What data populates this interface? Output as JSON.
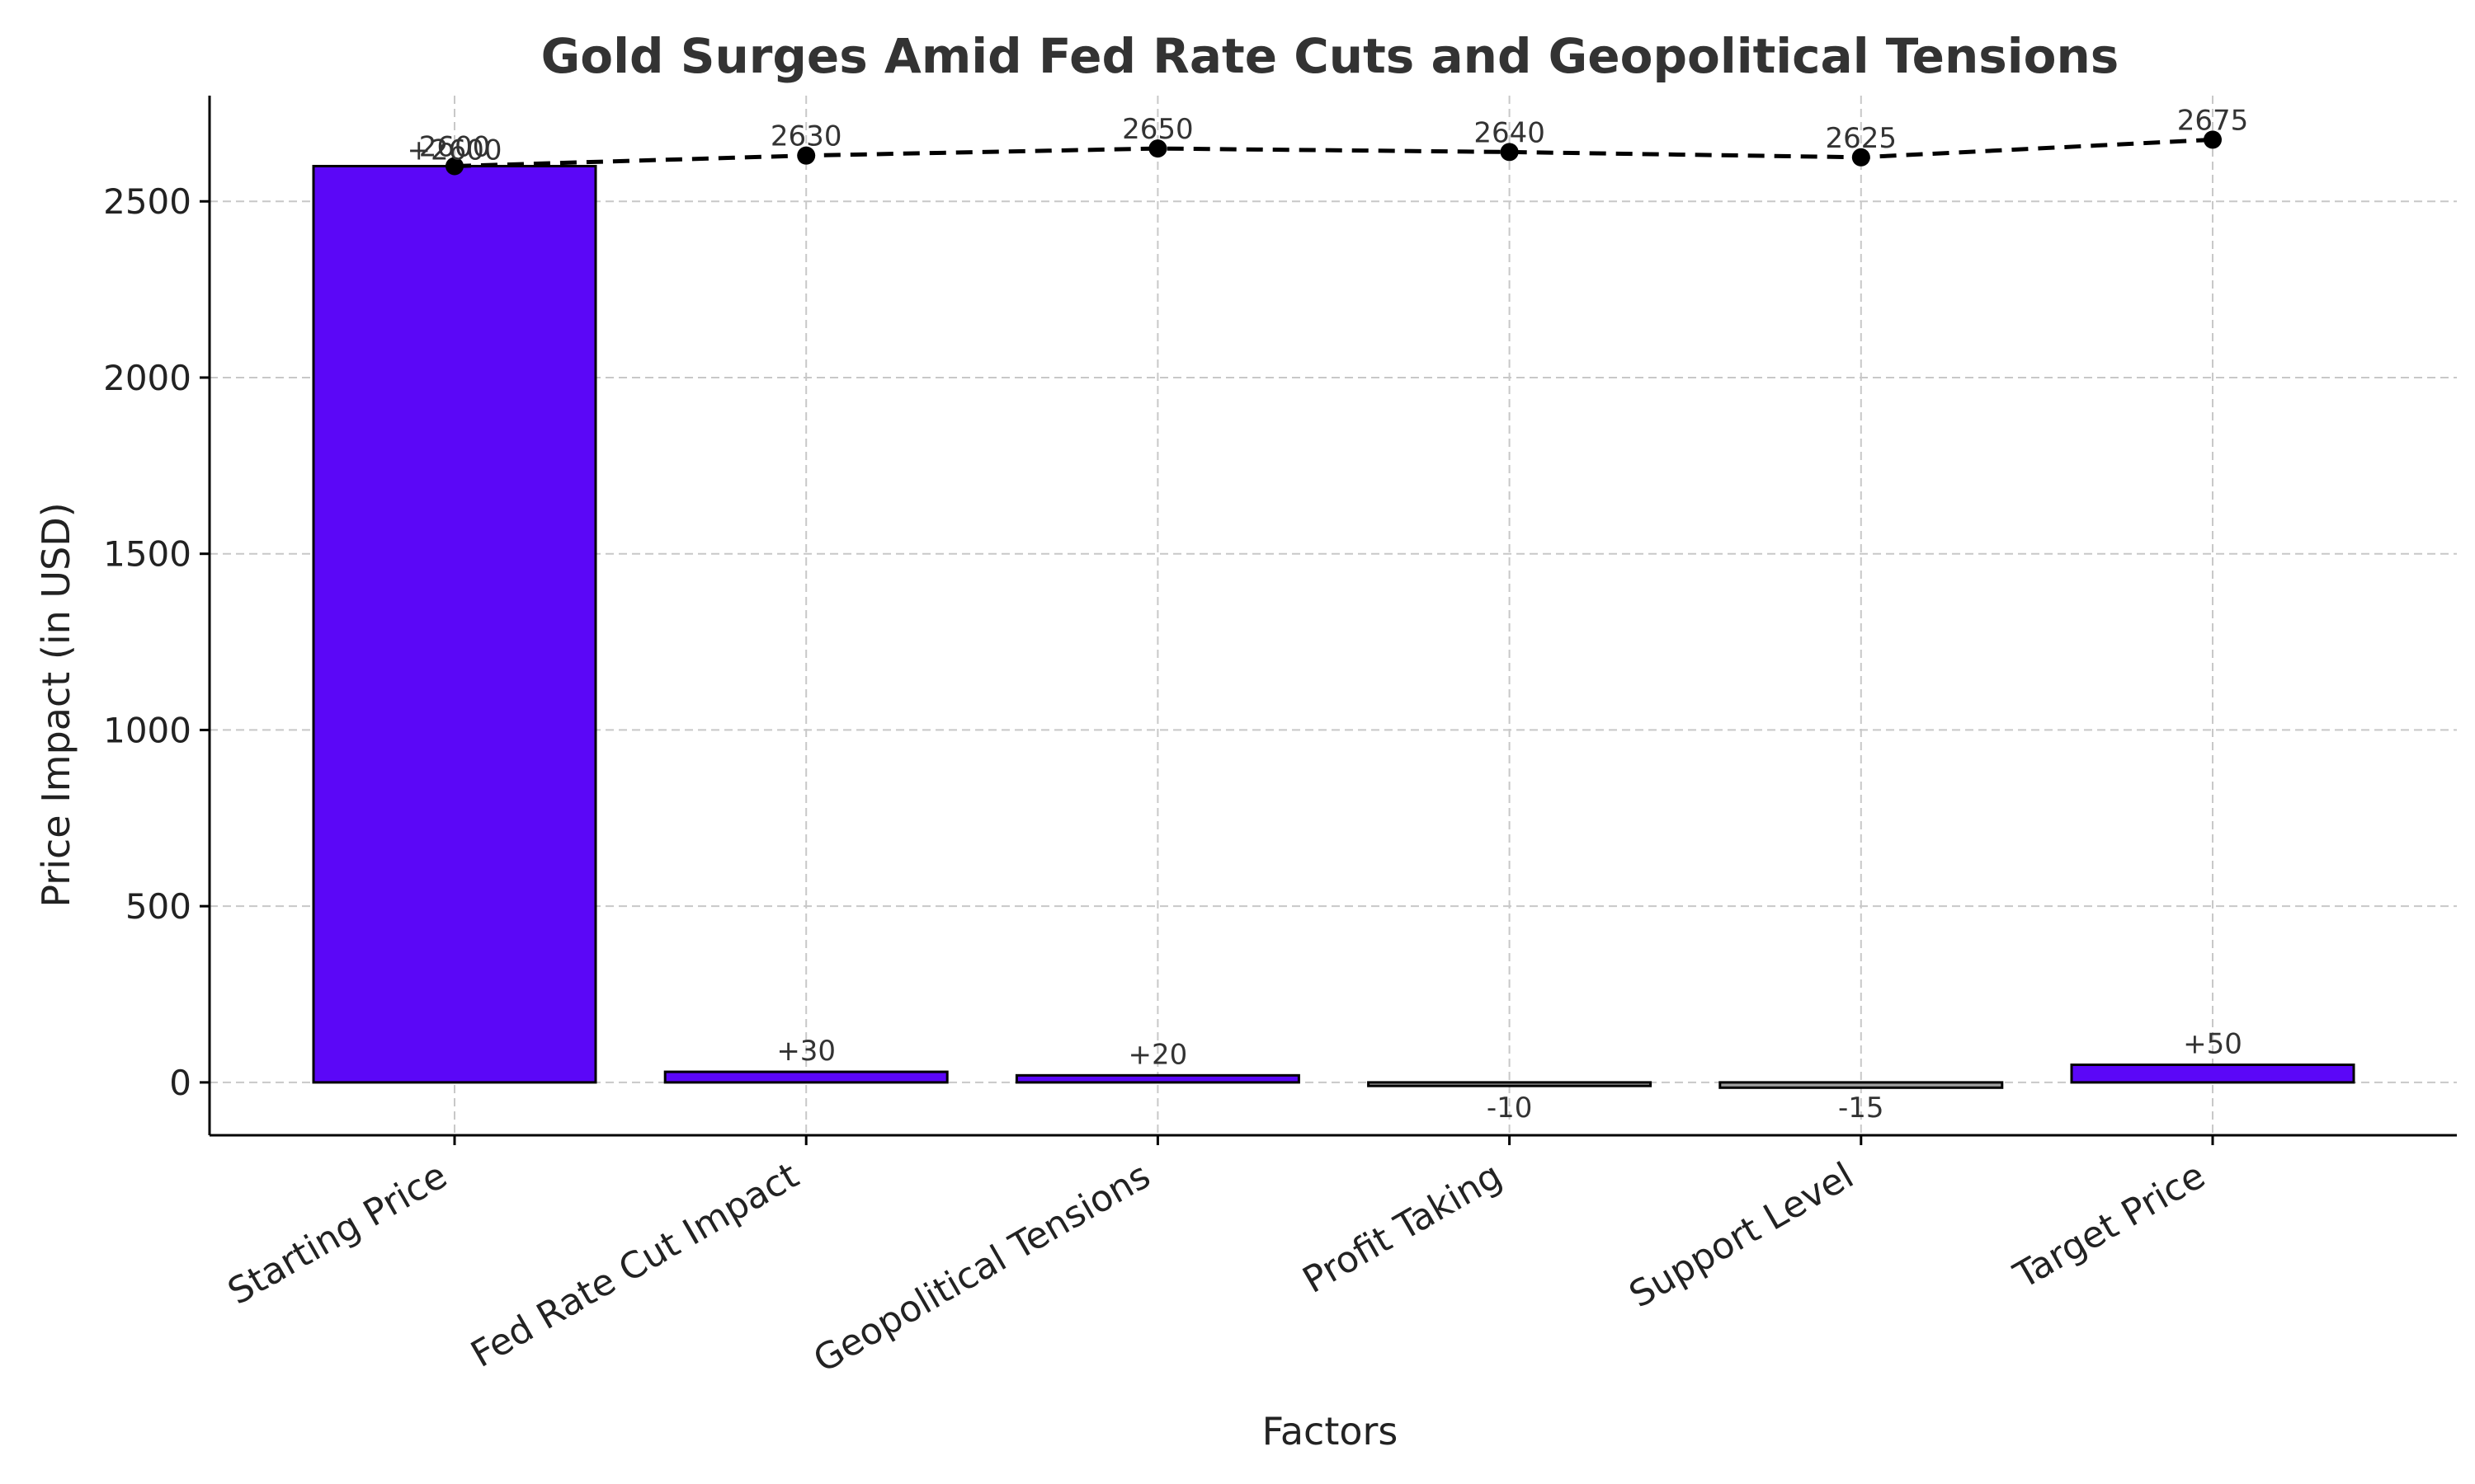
{
  "chart_data": {
    "type": "bar",
    "title": "Gold Surges Amid Fed Rate Cuts and Geopolitical Tensions",
    "xlabel": "Factors",
    "ylabel": "Price Impact (in USD)",
    "ylim": [
      -150,
      2800
    ],
    "yticks": [
      0,
      500,
      1000,
      1500,
      2000,
      2500
    ],
    "grid": true,
    "categories": [
      "Starting Price",
      "Fed Rate Cut Impact",
      "Geopolitical Tensions",
      "Profit Taking",
      "Support Level",
      "Target Price"
    ],
    "values": [
      2600,
      30,
      20,
      -10,
      -15,
      50
    ],
    "value_labels": [
      "+2600",
      "+30",
      "+20",
      "-10",
      "-15",
      "+50"
    ],
    "cumulative": [
      2600,
      2630,
      2650,
      2640,
      2625,
      2675
    ],
    "cumulative_labels": [
      "2600",
      "2630",
      "2650",
      "2640",
      "2625",
      "2675"
    ],
    "colors": {
      "positive": "#5b07f7",
      "negative": "#9e9e9e",
      "line": "#000000"
    }
  }
}
